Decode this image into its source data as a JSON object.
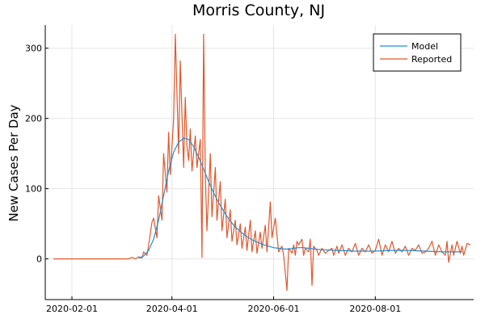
{
  "chart_data": {
    "type": "line",
    "title": "Morris County, NJ",
    "xlabel": "",
    "ylabel": "New Cases Per Day",
    "x_range": [
      "2020-01-16",
      "2020-09-29"
    ],
    "ylim": [
      -58,
      333
    ],
    "x_ticks": [
      "2020-02-01",
      "2020-04-01",
      "2020-06-01",
      "2020-08-01"
    ],
    "y_ticks": [
      0,
      100,
      200,
      300
    ],
    "grid": true,
    "legend_position": "top-right",
    "series": [
      {
        "name": "Model",
        "color": "#1f8fd6",
        "points": [
          [
            "2020-03-12",
            1
          ],
          [
            "2020-03-15",
            4
          ],
          [
            "2020-03-18",
            12
          ],
          [
            "2020-03-21",
            28
          ],
          [
            "2020-03-24",
            55
          ],
          [
            "2020-03-27",
            90
          ],
          [
            "2020-03-30",
            125
          ],
          [
            "2020-04-02",
            152
          ],
          [
            "2020-04-05",
            166
          ],
          [
            "2020-04-08",
            172
          ],
          [
            "2020-04-11",
            170
          ],
          [
            "2020-04-14",
            160
          ],
          [
            "2020-04-17",
            145
          ],
          [
            "2020-04-20",
            128
          ],
          [
            "2020-04-23",
            110
          ],
          [
            "2020-04-26",
            94
          ],
          [
            "2020-04-29",
            80
          ],
          [
            "2020-05-02",
            68
          ],
          [
            "2020-05-05",
            57
          ],
          [
            "2020-05-08",
            48
          ],
          [
            "2020-05-11",
            41
          ],
          [
            "2020-05-14",
            35
          ],
          [
            "2020-05-17",
            30
          ],
          [
            "2020-05-20",
            26
          ],
          [
            "2020-05-23",
            23
          ],
          [
            "2020-05-26",
            20
          ],
          [
            "2020-05-29",
            18
          ],
          [
            "2020-06-01",
            16
          ],
          [
            "2020-06-04",
            15
          ],
          [
            "2020-06-07",
            14
          ],
          [
            "2020-06-10",
            14
          ],
          [
            "2020-06-13",
            15
          ],
          [
            "2020-06-16",
            16
          ],
          [
            "2020-06-19",
            16
          ],
          [
            "2020-06-22",
            15
          ],
          [
            "2020-06-25",
            14
          ],
          [
            "2020-06-30",
            13
          ],
          [
            "2020-07-10",
            12
          ],
          [
            "2020-07-20",
            11
          ],
          [
            "2020-07-31",
            11
          ],
          [
            "2020-08-10",
            12
          ],
          [
            "2020-08-20",
            12
          ],
          [
            "2020-08-31",
            11
          ],
          [
            "2020-09-10",
            10
          ],
          [
            "2020-09-22",
            10
          ]
        ]
      },
      {
        "name": "Reported",
        "color": "#e2572c",
        "points": [
          [
            "2020-01-21",
            0
          ],
          [
            "2020-03-03",
            0
          ],
          [
            "2020-03-06",
            0
          ],
          [
            "2020-03-08",
            2
          ],
          [
            "2020-03-10",
            0
          ],
          [
            "2020-03-12",
            3
          ],
          [
            "2020-03-14",
            1
          ],
          [
            "2020-03-15",
            10
          ],
          [
            "2020-03-17",
            5
          ],
          [
            "2020-03-18",
            20
          ],
          [
            "2020-03-20",
            52
          ],
          [
            "2020-03-21",
            58
          ],
          [
            "2020-03-23",
            30
          ],
          [
            "2020-03-24",
            90
          ],
          [
            "2020-03-26",
            55
          ],
          [
            "2020-03-27",
            150
          ],
          [
            "2020-03-29",
            95
          ],
          [
            "2020-03-30",
            180
          ],
          [
            "2020-03-31",
            120
          ],
          [
            "2020-04-02",
            200
          ],
          [
            "2020-04-03",
            320
          ],
          [
            "2020-04-05",
            150
          ],
          [
            "2020-04-06",
            282
          ],
          [
            "2020-04-08",
            130
          ],
          [
            "2020-04-09",
            230
          ],
          [
            "2020-04-10",
            160
          ],
          [
            "2020-04-11",
            140
          ],
          [
            "2020-04-12",
            185
          ],
          [
            "2020-04-13",
            125
          ],
          [
            "2020-04-15",
            175
          ],
          [
            "2020-04-16",
            130
          ],
          [
            "2020-04-18",
            170
          ],
          [
            "2020-04-19",
            2
          ],
          [
            "2020-04-20",
            320
          ],
          [
            "2020-04-21",
            120
          ],
          [
            "2020-04-22",
            40
          ],
          [
            "2020-04-24",
            150
          ],
          [
            "2020-04-25",
            60
          ],
          [
            "2020-04-27",
            130
          ],
          [
            "2020-04-28",
            55
          ],
          [
            "2020-04-30",
            110
          ],
          [
            "2020-05-01",
            40
          ],
          [
            "2020-05-03",
            85
          ],
          [
            "2020-05-04",
            30
          ],
          [
            "2020-05-06",
            70
          ],
          [
            "2020-05-07",
            25
          ],
          [
            "2020-05-09",
            55
          ],
          [
            "2020-05-10",
            20
          ],
          [
            "2020-05-12",
            50
          ],
          [
            "2020-05-13",
            15
          ],
          [
            "2020-05-15",
            45
          ],
          [
            "2020-05-16",
            12
          ],
          [
            "2020-05-18",
            55
          ],
          [
            "2020-05-19",
            10
          ],
          [
            "2020-05-21",
            40
          ],
          [
            "2020-05-22",
            8
          ],
          [
            "2020-05-24",
            38
          ],
          [
            "2020-05-25",
            15
          ],
          [
            "2020-05-27",
            48
          ],
          [
            "2020-05-28",
            10
          ],
          [
            "2020-05-30",
            81
          ],
          [
            "2020-05-31",
            30
          ],
          [
            "2020-06-02",
            58
          ],
          [
            "2020-06-04",
            10
          ],
          [
            "2020-06-06",
            18
          ],
          [
            "2020-06-07",
            5
          ],
          [
            "2020-06-09",
            -45
          ],
          [
            "2020-06-10",
            15
          ],
          [
            "2020-06-12",
            8
          ],
          [
            "2020-06-13",
            20
          ],
          [
            "2020-06-14",
            5
          ],
          [
            "2020-06-15",
            25
          ],
          [
            "2020-06-16",
            20
          ],
          [
            "2020-06-18",
            28
          ],
          [
            "2020-06-19",
            5
          ],
          [
            "2020-06-20",
            15
          ],
          [
            "2020-06-22",
            10
          ],
          [
            "2020-06-23",
            28
          ],
          [
            "2020-06-24",
            -38
          ],
          [
            "2020-06-25",
            18
          ],
          [
            "2020-06-27",
            12
          ],
          [
            "2020-06-28",
            5
          ],
          [
            "2020-06-30",
            15
          ],
          [
            "2020-07-02",
            8
          ],
          [
            "2020-07-04",
            12
          ],
          [
            "2020-07-06",
            15
          ],
          [
            "2020-07-07",
            5
          ],
          [
            "2020-07-09",
            18
          ],
          [
            "2020-07-10",
            8
          ],
          [
            "2020-07-12",
            20
          ],
          [
            "2020-07-14",
            5
          ],
          [
            "2020-07-16",
            15
          ],
          [
            "2020-07-18",
            10
          ],
          [
            "2020-07-20",
            22
          ],
          [
            "2020-07-22",
            5
          ],
          [
            "2020-07-24",
            15
          ],
          [
            "2020-07-26",
            10
          ],
          [
            "2020-07-28",
            20
          ],
          [
            "2020-07-30",
            8
          ],
          [
            "2020-08-01",
            12
          ],
          [
            "2020-08-03",
            28
          ],
          [
            "2020-08-05",
            5
          ],
          [
            "2020-08-07",
            20
          ],
          [
            "2020-08-09",
            10
          ],
          [
            "2020-08-11",
            25
          ],
          [
            "2020-08-13",
            8
          ],
          [
            "2020-08-15",
            15
          ],
          [
            "2020-08-17",
            10
          ],
          [
            "2020-08-19",
            18
          ],
          [
            "2020-08-21",
            5
          ],
          [
            "2020-08-23",
            15
          ],
          [
            "2020-08-25",
            12
          ],
          [
            "2020-08-27",
            20
          ],
          [
            "2020-08-29",
            8
          ],
          [
            "2020-08-31",
            10
          ],
          [
            "2020-09-02",
            15
          ],
          [
            "2020-09-04",
            25
          ],
          [
            "2020-09-06",
            5
          ],
          [
            "2020-09-08",
            20
          ],
          [
            "2020-09-10",
            10
          ],
          [
            "2020-09-12",
            5
          ],
          [
            "2020-09-13",
            25
          ],
          [
            "2020-09-14",
            -5
          ],
          [
            "2020-09-16",
            20
          ],
          [
            "2020-09-17",
            5
          ],
          [
            "2020-09-19",
            25
          ],
          [
            "2020-09-21",
            8
          ],
          [
            "2020-09-22",
            18
          ],
          [
            "2020-09-23",
            5
          ],
          [
            "2020-09-25",
            22
          ],
          [
            "2020-09-27",
            20
          ]
        ]
      }
    ]
  }
}
